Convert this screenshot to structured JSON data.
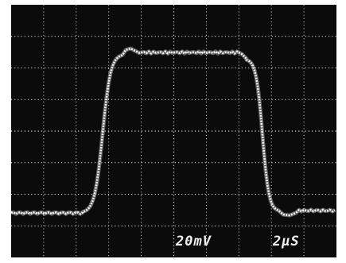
{
  "scope": {
    "screen_color": "#0b0b0b",
    "trace_color": "#f4f4f4",
    "graticule_color": "#d8d8d8",
    "volts_per_div": "20mV",
    "time_per_div": "2µS",
    "grid": {
      "columns": 10,
      "rows": 8
    }
  }
}
